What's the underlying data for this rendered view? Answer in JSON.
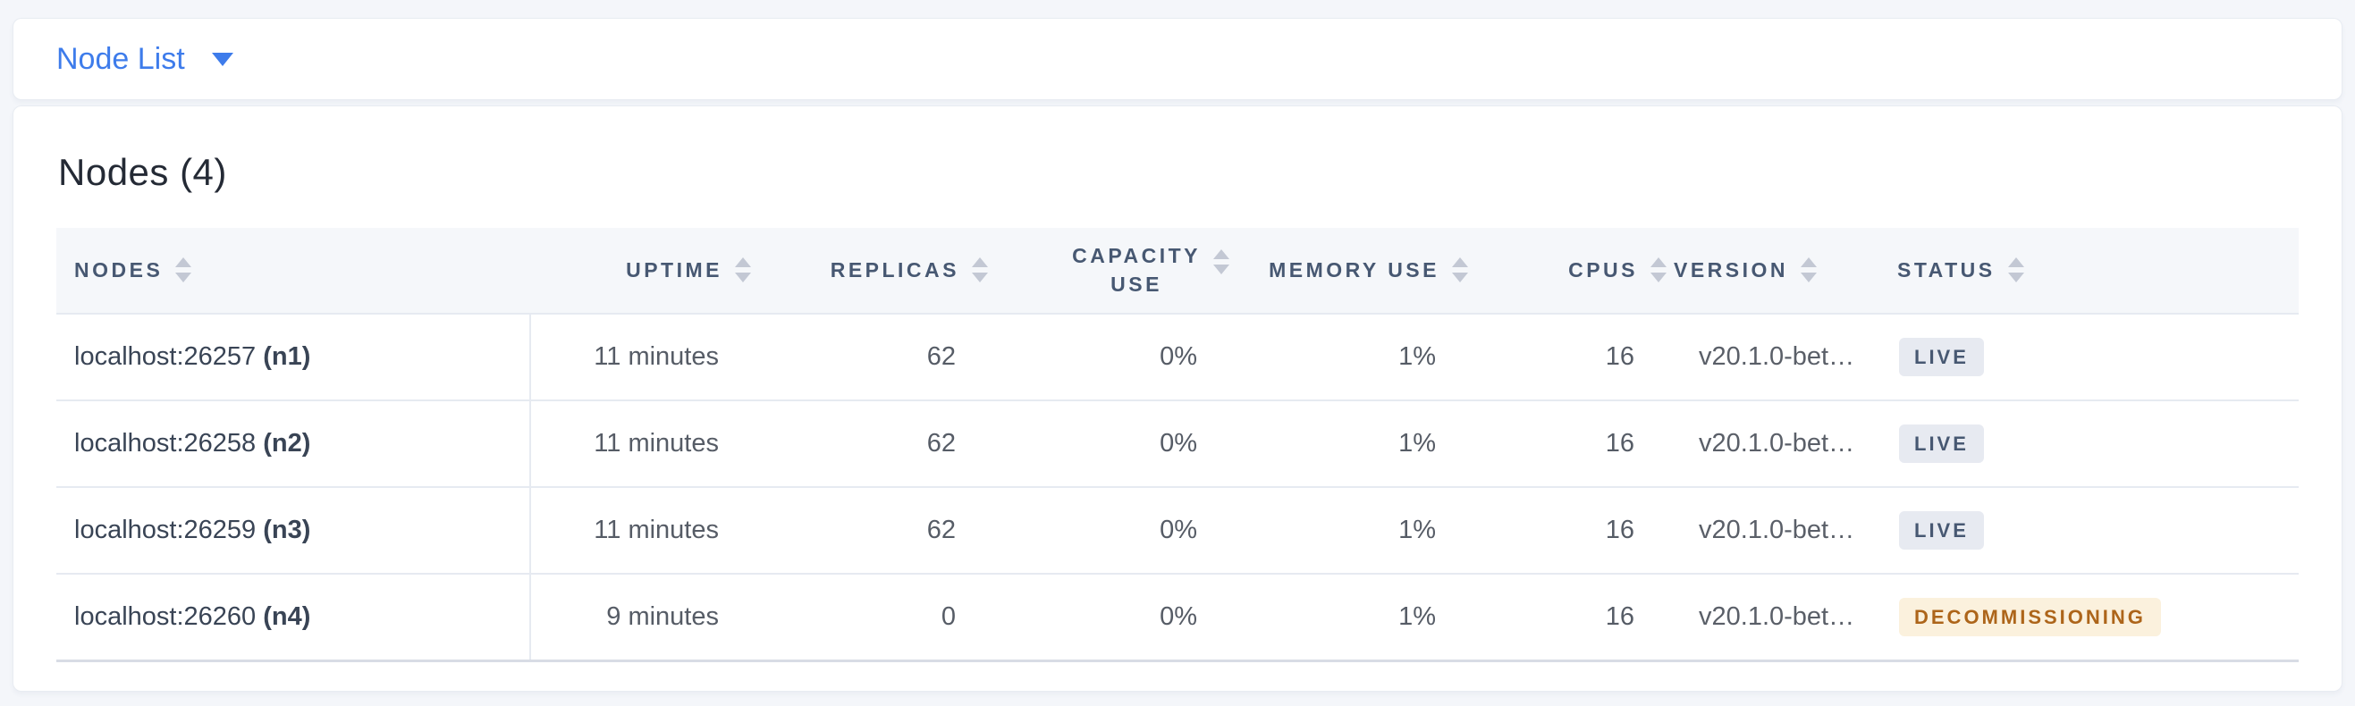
{
  "page": {
    "background_color": "#f4f6fa",
    "accent_blue": "#3e7ceb"
  },
  "toolbar": {
    "view_selector_label": "Node List",
    "caret_icon": "caret-down"
  },
  "main": {
    "title": "Nodes (4)"
  },
  "table": {
    "columns": [
      {
        "label": "NODES",
        "align": "left"
      },
      {
        "label": "UPTIME",
        "align": "right"
      },
      {
        "label": "REPLICAS",
        "align": "right"
      },
      {
        "label": "CAPACITY\nUSE",
        "align": "right",
        "two_line": true
      },
      {
        "label": "MEMORY USE",
        "align": "right"
      },
      {
        "label": "CPUS",
        "align": "right"
      },
      {
        "label": "VERSION",
        "align": "left"
      },
      {
        "label": "STATUS",
        "align": "left"
      }
    ],
    "rows": [
      {
        "node": "localhost:26257",
        "node_id": "(n1)",
        "uptime": "11 minutes",
        "replicas": "62",
        "capacity_use": "0%",
        "memory_use": "1%",
        "cpus": "16",
        "version": "v20.1.0-bet…",
        "status": {
          "label": "LIVE",
          "type": "live"
        }
      },
      {
        "node": "localhost:26258",
        "node_id": "(n2)",
        "uptime": "11 minutes",
        "replicas": "62",
        "capacity_use": "0%",
        "memory_use": "1%",
        "cpus": "16",
        "version": "v20.1.0-bet…",
        "status": {
          "label": "LIVE",
          "type": "live"
        }
      },
      {
        "node": "localhost:26259",
        "node_id": "(n3)",
        "uptime": "11 minutes",
        "replicas": "62",
        "capacity_use": "0%",
        "memory_use": "1%",
        "cpus": "16",
        "version": "v20.1.0-bet…",
        "status": {
          "label": "LIVE",
          "type": "live"
        }
      },
      {
        "node": "localhost:26260",
        "node_id": "(n4)",
        "uptime": "9 minutes",
        "replicas": "0",
        "capacity_use": "0%",
        "memory_use": "1%",
        "cpus": "16",
        "version": "v20.1.0-bet…",
        "status": {
          "label": "DECOMMISSIONING",
          "type": "decommissioning"
        }
      }
    ],
    "status_colors": {
      "live": {
        "bg": "#e7eaf1",
        "text": "#475872"
      },
      "decommissioning": {
        "bg": "#fbf1dd",
        "text": "#ad651a"
      }
    }
  }
}
